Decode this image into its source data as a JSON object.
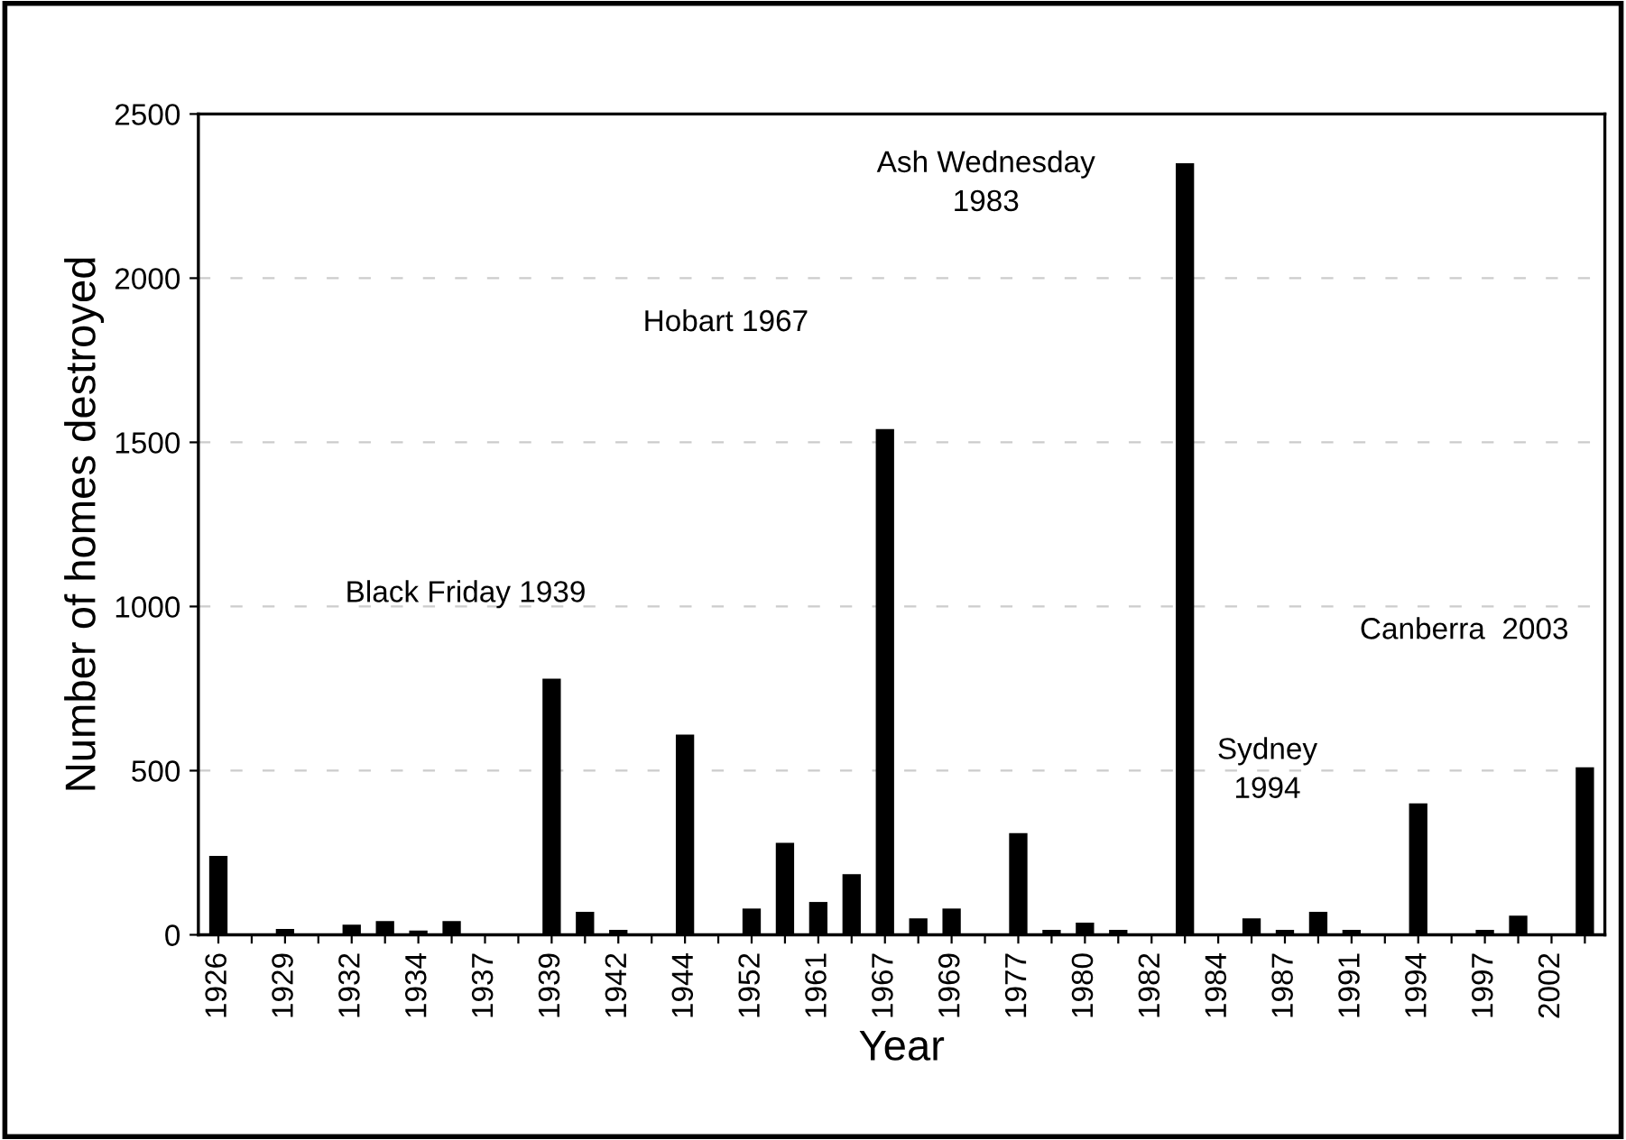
{
  "chart_data": {
    "type": "bar",
    "xlabel": "Year",
    "ylabel": "Number of homes destroyed",
    "categories": [
      "1926",
      null,
      "1929",
      null,
      "1932",
      null,
      "1934",
      null,
      "1937",
      null,
      "1939",
      null,
      "1942",
      null,
      "1944",
      null,
      "1952",
      null,
      "1961",
      null,
      "1967",
      null,
      "1969",
      null,
      "1977",
      null,
      "1980",
      null,
      "1982",
      null,
      "1984",
      null,
      "1987",
      null,
      "1991",
      null,
      "1994",
      null,
      "1997",
      null,
      "2002",
      null
    ],
    "values": [
      240,
      3,
      18,
      3,
      31,
      42,
      13,
      42,
      3,
      3,
      780,
      70,
      15,
      3,
      610,
      3,
      80,
      280,
      100,
      185,
      1540,
      50,
      80,
      3,
      310,
      15,
      37,
      15,
      3,
      2350,
      3,
      50,
      15,
      70,
      15,
      3,
      400,
      3,
      15,
      58,
      3,
      510
    ],
    "color": "#000000",
    "ylim": [
      0,
      2500
    ],
    "yticks": [
      0,
      500,
      1000,
      1500,
      2000,
      2500
    ],
    "grid": "y",
    "annotations": [
      "Black Friday 1939",
      "Hobart 1967",
      "Ash Wednesday\n1983",
      "Sydney\n1994",
      "Canberra  2003"
    ]
  }
}
